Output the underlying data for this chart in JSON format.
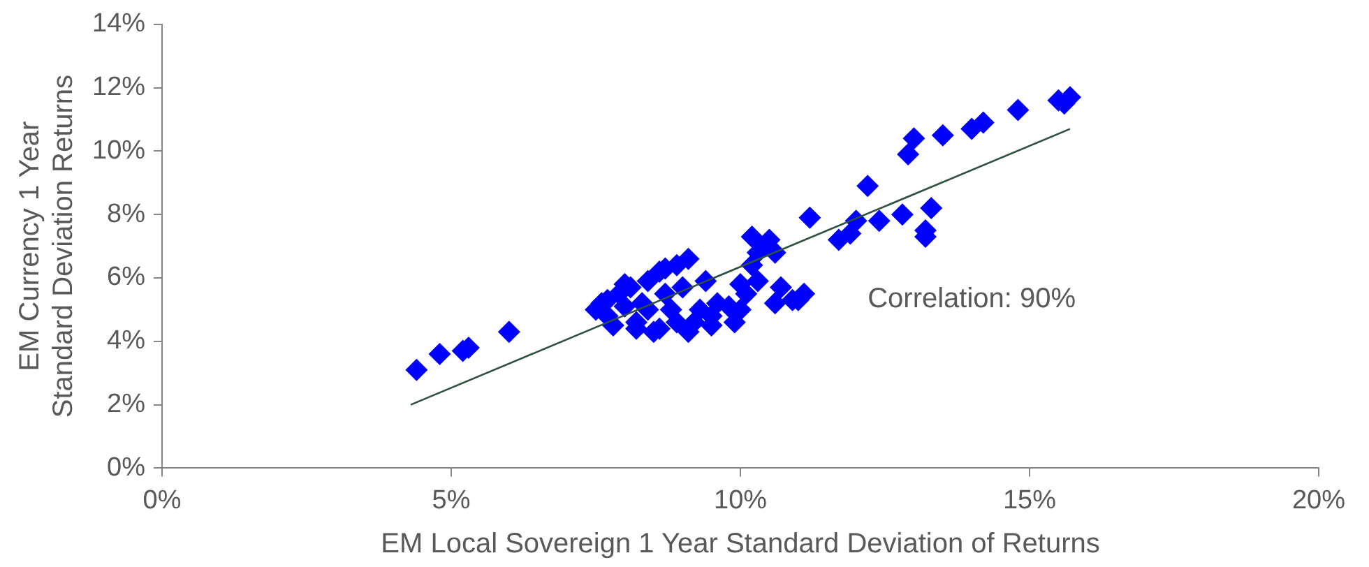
{
  "chart_data": {
    "type": "scatter",
    "xlabel": "EM Local Sovereign 1 Year Standard Deviation of Returns",
    "ylabel": "EM Currency 1 Year\nStandard Deviation Returns",
    "xlim": [
      0,
      20
    ],
    "xticks": [
      {
        "value": 0,
        "label": "0%"
      },
      {
        "value": 5,
        "label": "5%"
      },
      {
        "value": 10,
        "label": "10%"
      },
      {
        "value": 15,
        "label": "15%"
      },
      {
        "value": 20,
        "label": "20%"
      }
    ],
    "ylim": [
      0,
      14
    ],
    "yticks": [
      {
        "value": 0,
        "label": "0%"
      },
      {
        "value": 2,
        "label": "2%"
      },
      {
        "value": 4,
        "label": "4%"
      },
      {
        "value": 6,
        "label": "6%"
      },
      {
        "value": 8,
        "label": "8%"
      },
      {
        "value": 10,
        "label": "10%"
      },
      {
        "value": 12,
        "label": "12%"
      },
      {
        "value": 14,
        "label": "14%"
      }
    ],
    "grid": false,
    "legend": false,
    "marker": "diamond",
    "annotations": [
      "Correlation: 90%"
    ],
    "series": [
      {
        "color": "#0000ff",
        "x": [
          4.4,
          4.8,
          5.2,
          5.3,
          6.0,
          7.5,
          7.6,
          7.7,
          7.9,
          8.0,
          8.1,
          8.2,
          8.4,
          8.4,
          8.5,
          8.6,
          8.7,
          8.9,
          8.9,
          9.0,
          9.1,
          9.3,
          9.4,
          9.5,
          9.6,
          9.1,
          7.8,
          8.3,
          8.2,
          8.6,
          8.7,
          8.0,
          7.7,
          8.8,
          9.2,
          9.5,
          9.8,
          9.9,
          10.0,
          10.1,
          10.2,
          10.3,
          10.3,
          10.2,
          10.4,
          10.5,
          10.6,
          10.7,
          10.9,
          11.0,
          11.1,
          11.2,
          11.7,
          12.0,
          12.2,
          12.4,
          12.8,
          13.0,
          12.9,
          13.2,
          13.3,
          13.2,
          13.5,
          14.0,
          14.2,
          14.8,
          15.5,
          15.7,
          15.6,
          10.6,
          11.9,
          10.0
        ],
        "values": [
          3.1,
          3.6,
          3.7,
          3.8,
          4.3,
          5.0,
          5.2,
          4.8,
          5.5,
          5.1,
          5.7,
          4.6,
          5.9,
          5.0,
          4.3,
          6.2,
          5.5,
          6.4,
          4.6,
          5.7,
          4.3,
          5.0,
          5.9,
          4.8,
          5.2,
          6.6,
          4.5,
          5.2,
          4.4,
          4.4,
          6.3,
          5.8,
          5.3,
          5.0,
          4.6,
          4.5,
          5.1,
          4.6,
          5.0,
          5.5,
          6.4,
          5.9,
          6.8,
          7.3,
          7.0,
          7.2,
          6.8,
          5.7,
          5.3,
          5.3,
          5.5,
          7.9,
          7.2,
          7.8,
          8.9,
          7.8,
          8.0,
          10.4,
          9.9,
          7.5,
          8.2,
          7.3,
          10.5,
          10.7,
          10.9,
          11.3,
          11.6,
          11.7,
          11.5,
          5.2,
          7.4,
          5.8
        ]
      },
      {
        "type": "line",
        "color": "#2f4f3f",
        "marker": "none",
        "x": [
          4.3,
          15.7
        ],
        "values": [
          2.0,
          10.7
        ]
      }
    ]
  }
}
